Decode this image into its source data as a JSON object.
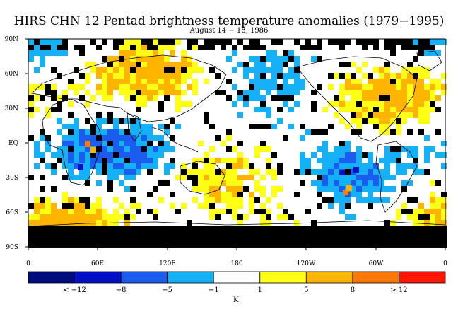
{
  "title": "HIRS CHN 12 Pentad brightness temperature anomalies (1979−1995)",
  "subtitle": "August 14 − 18, 1986",
  "lat_labels": [
    "90N",
    "60N",
    "30N",
    "EQ",
    "30S",
    "60S",
    "90S"
  ],
  "lon_labels": [
    "0",
    "60E",
    "120E",
    "180",
    "120W",
    "60W",
    "0"
  ],
  "colorbar": {
    "colors": [
      "#000c80",
      "#0010c8",
      "#1a5cf0",
      "#14b0f8",
      "#ffffff",
      "#ffff14",
      "#ffb400",
      "#ff7800",
      "#ff1400"
    ],
    "labels": [
      "< −12",
      "−8",
      "−5",
      "−1",
      "1",
      "5",
      "8",
      "> 12"
    ],
    "unit": "K"
  },
  "map_colors": {
    "missing": "#000000",
    "cold_light": "#14b0f8",
    "cold_mid": "#1a5cf0",
    "cold_deep": "#0010c8",
    "neutral": "#ffffff",
    "warm_light": "#ffff14",
    "warm_mid": "#ffb400",
    "warm_deep": "#ff7800"
  }
}
